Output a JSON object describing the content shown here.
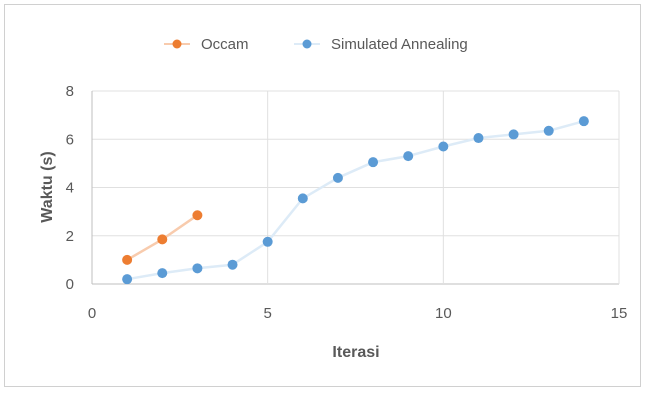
{
  "chart_data": {
    "type": "scatter",
    "xlabel": "Iterasi",
    "ylabel": "Waktu (s)",
    "xlim": [
      0,
      15
    ],
    "ylim": [
      0,
      8
    ],
    "x_ticks": [
      0,
      5,
      10,
      15
    ],
    "y_ticks": [
      0,
      2,
      4,
      6,
      8
    ],
    "grid": true,
    "legend_position": "top",
    "series": [
      {
        "name": "Occam",
        "color": "#ED7D31",
        "line_color": "#F8CBAD",
        "x": [
          1,
          2,
          3
        ],
        "y": [
          1.0,
          1.85,
          2.85
        ]
      },
      {
        "name": "Simulated Annealing",
        "color": "#5B9BD5",
        "line_color": "#DDEBF7",
        "x": [
          1,
          2,
          3,
          4,
          5,
          6,
          7,
          8,
          9,
          10,
          11,
          12,
          13,
          14
        ],
        "y": [
          0.2,
          0.45,
          0.65,
          0.8,
          1.75,
          3.55,
          4.4,
          5.05,
          5.3,
          5.7,
          6.05,
          6.2,
          6.35,
          6.75
        ]
      }
    ]
  }
}
